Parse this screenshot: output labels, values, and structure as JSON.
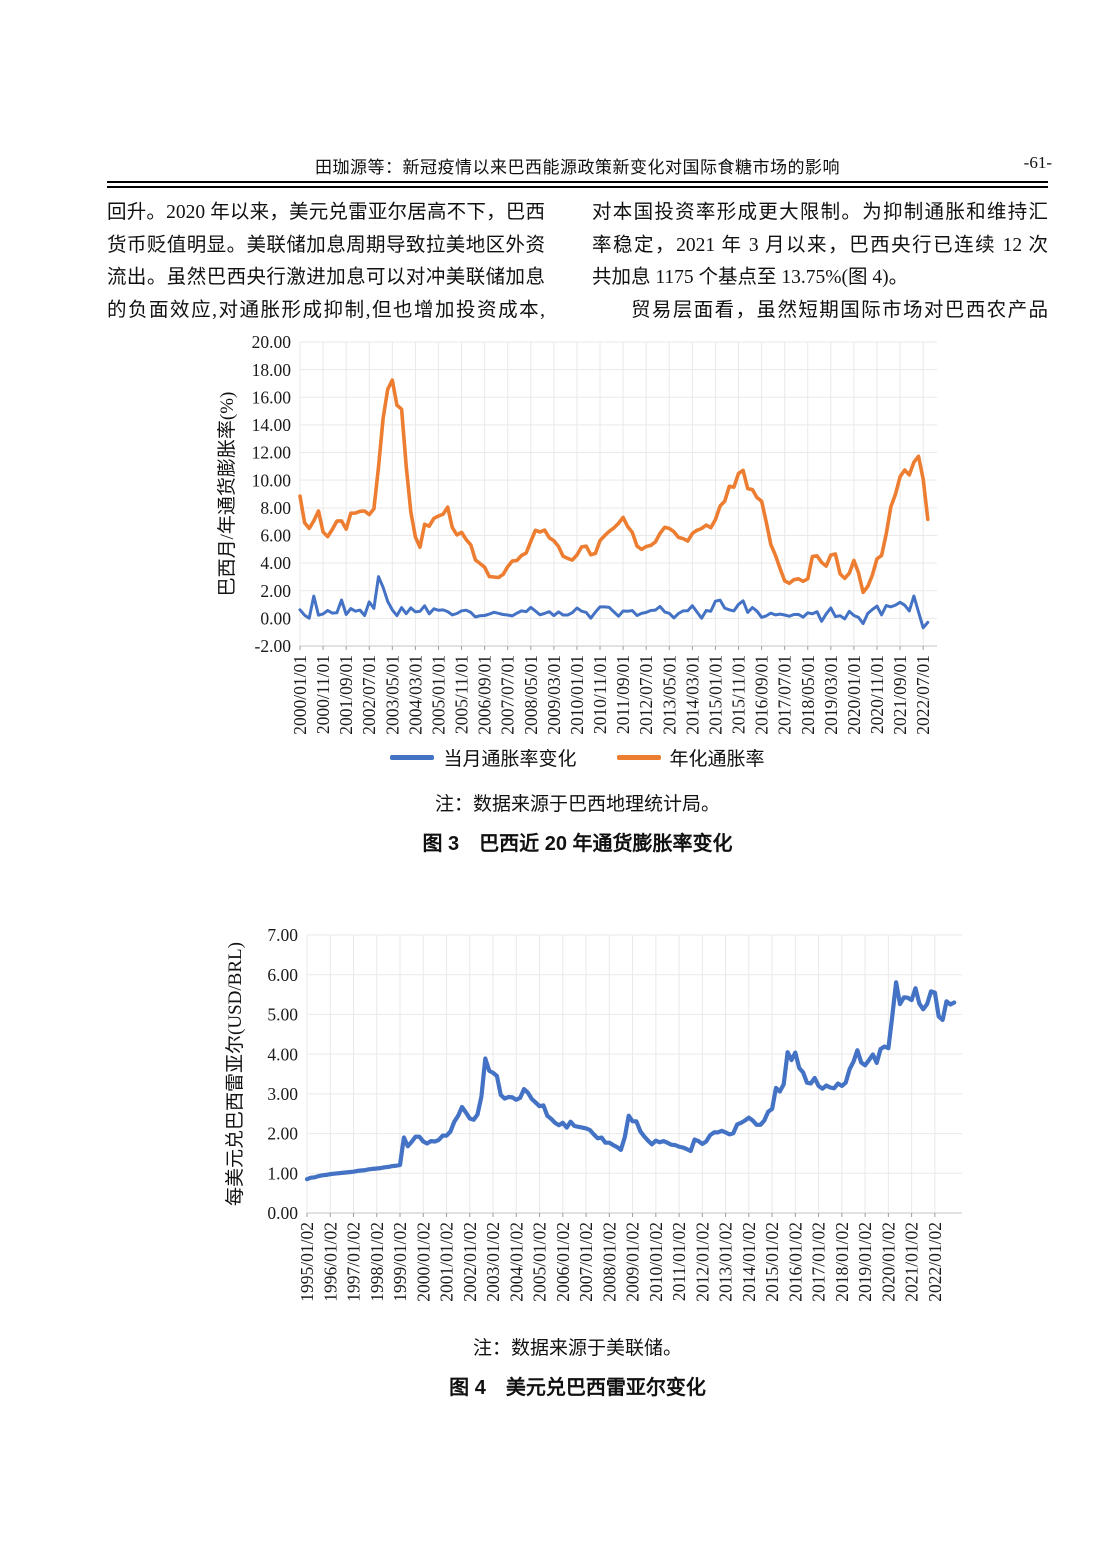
{
  "header": {
    "title": "田珈源等：新冠疫情以来巴西能源政策新变化对国际食糖市场的影响",
    "page_number": "-61-"
  },
  "body": {
    "left_lines": [
      "回升。2020 年以来，美元兑雷亚尔居高不下，巴西",
      "货币贬值明显。美联储加息周期导致拉美地区外资",
      "流出。虽然巴西央行激进加息可以对冲美联储加息",
      "的负面效应,对通胀形成抑制,但也增加投资成本,"
    ],
    "right_lines": [
      "对本国投资率形成更大限制。为抑制通胀和维持汇",
      "率稳定，2021 年 3 月以来，巴西央行已连续 12 次",
      "共加息 1175 个基点至 13.75%(图 4)。",
      "贸易层面看，虽然短期国际市场对巴西农产品"
    ]
  },
  "figure3": {
    "note": "注：数据来源于巴西地理统计局。",
    "caption": "图 3　巴西近 20 年通货膨胀率变化",
    "legend": [
      {
        "label": "当月通胀率变化",
        "color": "#4472C4"
      },
      {
        "label": "年化通胀率",
        "color": "#ED7D31"
      }
    ]
  },
  "figure4": {
    "note": "注：数据来源于美联储。",
    "caption": "图 4　美元兑巴西雷亚尔变化"
  },
  "chart_data": [
    {
      "type": "line",
      "title": "巴西近 20 年通货膨胀率变化",
      "ylabel": "巴西月/年通货膨胀率(%)",
      "xlabel": "",
      "ylim": [
        -2,
        20
      ],
      "ytick_step": 2,
      "grid": true,
      "legend_position": "bottom",
      "x_total_units": 276,
      "x_tick_unit_step": 10,
      "x_tick_labels": [
        "2000/01/01",
        "2000/11/01",
        "2001/09/01",
        "2002/07/01",
        "2003/05/01",
        "2004/03/01",
        "2005/01/01",
        "2005/11/01",
        "2006/09/01",
        "2007/07/01",
        "2008/05/01",
        "2009/03/01",
        "2010/01/01",
        "2010/11/01",
        "2011/09/01",
        "2012/07/01",
        "2013/05/01",
        "2014/03/01",
        "2015/01/01",
        "2015/11/01",
        "2016/09/01",
        "2017/07/01",
        "2018/05/01",
        "2019/03/01",
        "2020/01/01",
        "2020/11/01",
        "2021/09/01",
        "2022/07/01"
      ],
      "series": [
        {
          "name": "当月通胀率变化",
          "color": "#4472C4",
          "width": 3,
          "start_unit": 0,
          "unit_step": 2,
          "values": [
            0.62,
            0.23,
            0.01,
            1.61,
            0.23,
            0.32,
            0.57,
            0.38,
            0.41,
            1.33,
            0.28,
            0.71,
            0.52,
            0.6,
            0.21,
            1.19,
            0.72,
            3.02,
            2.25,
            1.23,
            0.61,
            0.2,
            0.78,
            0.34,
            0.76,
            0.47,
            0.51,
            0.91,
            0.33,
            0.69,
            0.58,
            0.61,
            0.49,
            0.25,
            0.35,
            0.55,
            0.59,
            0.43,
            0.1,
            0.19,
            0.21,
            0.31,
            0.44,
            0.37,
            0.28,
            0.24,
            0.18,
            0.38,
            0.54,
            0.48,
            0.79,
            0.53,
            0.26,
            0.36,
            0.48,
            0.2,
            0.47,
            0.24,
            0.24,
            0.41,
            0.75,
            0.52,
            0.43,
            0.01,
            0.45,
            0.83,
            0.83,
            0.79,
            0.47,
            0.16,
            0.53,
            0.52,
            0.56,
            0.21,
            0.36,
            0.43,
            0.57,
            0.6,
            0.86,
            0.47,
            0.37,
            0.03,
            0.35,
            0.54,
            0.55,
            0.92,
            0.46,
            0.01,
            0.57,
            0.51,
            1.24,
            1.32,
            0.74,
            0.62,
            0.54,
            1.01,
            1.27,
            0.43,
            0.78,
            0.52,
            0.08,
            0.18,
            0.38,
            0.25,
            0.31,
            0.24,
            0.16,
            0.28,
            0.29,
            0.09,
            0.4,
            0.33,
            0.48,
            -0.21,
            0.32,
            0.75,
            0.13,
            0.19,
            -0.04,
            0.51,
            0.21,
            0.07,
            -0.38,
            0.36,
            0.64,
            0.89,
            0.25,
            0.93,
            0.83,
            0.96,
            1.16,
            0.95,
            0.54,
            1.62,
            0.47,
            -0.68,
            -0.29
          ]
        },
        {
          "name": "年化通胀率",
          "color": "#ED7D31",
          "width": 3.6,
          "start_unit": 0,
          "unit_step": 2,
          "values": [
            8.85,
            6.92,
            6.51,
            7.06,
            7.77,
            6.25,
            5.92,
            6.44,
            7.04,
            7.05,
            6.46,
            7.61,
            7.62,
            7.75,
            7.77,
            7.51,
            7.93,
            10.93,
            14.47,
            16.57,
            17.24,
            15.43,
            15.14,
            11.02,
            7.71,
            5.89,
            5.15,
            6.81,
            6.67,
            7.24,
            7.41,
            7.54,
            8.05,
            6.57,
            6.04,
            6.22,
            5.7,
            5.32,
            4.23,
            3.97,
            3.7,
            3.02,
            2.99,
            2.96,
            3.18,
            3.74,
            4.15,
            4.19,
            4.56,
            4.73,
            5.58,
            6.37,
            6.25,
            6.39,
            5.84,
            5.61,
            5.2,
            4.5,
            4.34,
            4.22,
            4.59,
            5.17,
            5.22,
            4.6,
            4.7,
            5.63,
            5.99,
            6.3,
            6.55,
            6.87,
            7.31,
            6.64,
            6.22,
            5.24,
            4.99,
            5.2,
            5.28,
            5.53,
            6.15,
            6.59,
            6.5,
            6.27,
            5.86,
            5.77,
            5.59,
            6.15,
            6.37,
            6.5,
            6.75,
            6.56,
            7.14,
            8.13,
            8.47,
            9.56,
            9.49,
            10.48,
            10.71,
            9.39,
            9.32,
            8.74,
            8.48,
            6.99,
            5.35,
            4.57,
            3.6,
            2.71,
            2.54,
            2.8,
            2.86,
            2.68,
            2.86,
            4.48,
            4.53,
            4.05,
            3.78,
            4.58,
            4.66,
            3.22,
            2.89,
            3.27,
            4.19,
            3.3,
            1.88,
            2.31,
            3.14,
            4.31,
            4.56,
            6.1,
            8.06,
            8.99,
            10.25,
            10.74,
            10.38,
            11.3,
            11.73,
            10.07,
            7.17
          ]
        }
      ]
    },
    {
      "type": "line",
      "title": "美元兑巴西雷亚尔变化",
      "ylabel": "每美元兑巴西雷亚尔(USD/BRL)",
      "xlabel": "",
      "ylim": [
        0,
        7
      ],
      "ytick_step": 1,
      "grid": true,
      "legend_position": "none",
      "x_total_units": 338,
      "x_tick_unit_step": 12,
      "x_tick_labels": [
        "1995/01/02",
        "1996/01/02",
        "1997/01/02",
        "1998/01/02",
        "1999/01/02",
        "2000/01/02",
        "2001/01/02",
        "2002/01/02",
        "2003/01/02",
        "2004/01/02",
        "2005/01/02",
        "2006/01/02",
        "2007/01/02",
        "2008/01/02",
        "2009/01/02",
        "2010/01/02",
        "2011/01/02",
        "2012/01/02",
        "2013/01/02",
        "2014/01/02",
        "2015/01/02",
        "2016/01/02",
        "2017/01/02",
        "2018/01/02",
        "2019/01/02",
        "2020/01/02",
        "2021/01/02",
        "2022/01/02"
      ],
      "series": [
        {
          "name": "USD/BRL",
          "color": "#4472C4",
          "width": 4.2,
          "start_unit": 0,
          "unit_step": 2,
          "values": [
            0.85,
            0.89,
            0.9,
            0.93,
            0.95,
            0.96,
            0.98,
            0.99,
            1.0,
            1.01,
            1.02,
            1.03,
            1.04,
            1.06,
            1.07,
            1.08,
            1.1,
            1.11,
            1.12,
            1.13,
            1.15,
            1.16,
            1.18,
            1.19,
            1.21,
            1.9,
            1.68,
            1.79,
            1.92,
            1.92,
            1.8,
            1.75,
            1.81,
            1.8,
            1.84,
            1.95,
            1.95,
            2.05,
            2.3,
            2.45,
            2.67,
            2.53,
            2.38,
            2.35,
            2.48,
            2.93,
            3.89,
            3.58,
            3.53,
            3.45,
            2.97,
            2.88,
            2.92,
            2.91,
            2.85,
            2.9,
            3.12,
            3.03,
            2.87,
            2.78,
            2.69,
            2.71,
            2.45,
            2.37,
            2.27,
            2.21,
            2.27,
            2.15,
            2.3,
            2.19,
            2.17,
            2.15,
            2.13,
            2.09,
            1.98,
            1.88,
            1.9,
            1.77,
            1.77,
            1.71,
            1.66,
            1.59,
            1.91,
            2.45,
            2.31,
            2.31,
            2.06,
            1.93,
            1.82,
            1.73,
            1.82,
            1.78,
            1.81,
            1.77,
            1.72,
            1.71,
            1.67,
            1.65,
            1.61,
            1.56,
            1.85,
            1.81,
            1.74,
            1.8,
            1.96,
            2.03,
            2.03,
            2.07,
            2.03,
            1.98,
            2.01,
            2.23,
            2.27,
            2.33,
            2.4,
            2.33,
            2.22,
            2.22,
            2.33,
            2.55,
            2.62,
            3.15,
            3.06,
            3.24,
            4.05,
            3.85,
            4.04,
            3.65,
            3.54,
            3.28,
            3.26,
            3.4,
            3.2,
            3.13,
            3.21,
            3.16,
            3.14,
            3.26,
            3.2,
            3.28,
            3.62,
            3.81,
            4.1,
            3.79,
            3.72,
            3.85,
            3.99,
            3.78,
            4.13,
            4.19,
            4.15,
            4.94,
            5.81,
            5.26,
            5.43,
            5.42,
            5.36,
            5.66,
            5.27,
            5.13,
            5.26,
            5.58,
            5.55,
            4.95,
            4.86,
            5.33,
            5.25,
            5.3
          ]
        }
      ]
    }
  ]
}
